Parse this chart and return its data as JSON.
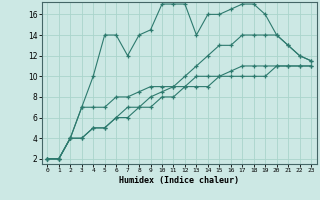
{
  "xlabel": "Humidex (Indice chaleur)",
  "background_color": "#cce8e4",
  "grid_color": "#aad4cc",
  "line_color": "#2d7a6e",
  "xlim": [
    -0.5,
    23.5
  ],
  "ylim": [
    1.5,
    17.2
  ],
  "xticks": [
    0,
    1,
    2,
    3,
    4,
    5,
    6,
    7,
    8,
    9,
    10,
    11,
    12,
    13,
    14,
    15,
    16,
    17,
    18,
    19,
    20,
    21,
    22,
    23
  ],
  "yticks": [
    2,
    4,
    6,
    8,
    10,
    12,
    14,
    16
  ],
  "series": [
    [
      2,
      2,
      4,
      7,
      10,
      14,
      14,
      12,
      14,
      14.5,
      17,
      17,
      17,
      14,
      16,
      16,
      16.5,
      17,
      17,
      16,
      14,
      13,
      12,
      11.5
    ],
    [
      2,
      2,
      4,
      7,
      7,
      7,
      8,
      8,
      8.5,
      9,
      9,
      9,
      9,
      10,
      10,
      10,
      10.5,
      11,
      11,
      11,
      11,
      11,
      11,
      11
    ],
    [
      2,
      2,
      4,
      4,
      5,
      5,
      6,
      7,
      7,
      8,
      8.5,
      9,
      10,
      11,
      12,
      13,
      13,
      14,
      14,
      14,
      14,
      13,
      12,
      11.5
    ],
    [
      2,
      2,
      4,
      4,
      5,
      5,
      6,
      6,
      7,
      7,
      8,
      8,
      9,
      9,
      9,
      10,
      10,
      10,
      10,
      10,
      11,
      11,
      11,
      11
    ]
  ]
}
